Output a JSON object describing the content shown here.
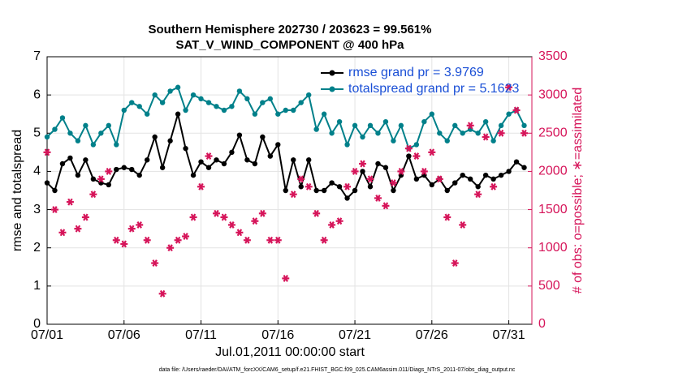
{
  "chart_data": {
    "type": "line",
    "title": "Southern Hemisphere 202730 / 203623 = 99.561%",
    "subtitle": "SAT_V_WIND_COMPONENT @ 400 hPa",
    "ylabel": "rmse and totalspread",
    "y2label": "# of obs: o=possible; ∗=assimilated",
    "xlabel": "Jul.01,2011 00:00:00 start",
    "footnote": "data file: /Users/raeder/DAI/ATM_forcXX/CAM6_setup/f.e21.FHIST_BGC.f09_025.CAM6assim.011/Diags_NTrS_2011-07/obs_diag_output.nc",
    "x": [
      0,
      0.5,
      1,
      1.5,
      2,
      2.5,
      3,
      3.5,
      4,
      4.5,
      5,
      5.5,
      6,
      6.5,
      7,
      7.5,
      8,
      8.5,
      9,
      9.5,
      10,
      10.5,
      11,
      11.5,
      12,
      12.5,
      13,
      13.5,
      14,
      14.5,
      15,
      15.5,
      16,
      16.5,
      17,
      17.5,
      18,
      18.5,
      19,
      19.5,
      20,
      20.5,
      21,
      21.5,
      22,
      22.5,
      23,
      23.5,
      24,
      24.5,
      25,
      25.5,
      26,
      26.5,
      27,
      27.5,
      28,
      28.5,
      29,
      29.5,
      30,
      30.5,
      31
    ],
    "xlim": [
      0,
      31.5
    ],
    "xticks": [
      {
        "value": 0,
        "label": "07/01"
      },
      {
        "value": 5,
        "label": "07/06"
      },
      {
        "value": 10,
        "label": "07/11"
      },
      {
        "value": 15,
        "label": "07/16"
      },
      {
        "value": 20,
        "label": "07/21"
      },
      {
        "value": 25,
        "label": "07/26"
      },
      {
        "value": 30,
        "label": "07/31"
      }
    ],
    "ylim": [
      0,
      7
    ],
    "yticks": [
      0,
      1,
      2,
      3,
      4,
      5,
      6,
      7
    ],
    "y2lim": [
      0,
      3500
    ],
    "y2ticks": [
      0,
      500,
      1000,
      1500,
      2000,
      2500,
      3000,
      3500
    ],
    "grid": true,
    "legend": "northeast",
    "series": [
      {
        "name": "rmse grand pr = 3.9769",
        "color": "#000000",
        "marker": "o",
        "linestyle": "-",
        "values": [
          3.7,
          3.5,
          4.2,
          4.35,
          3.9,
          4.3,
          3.8,
          3.7,
          3.65,
          4.05,
          4.1,
          4.05,
          3.9,
          4.3,
          4.9,
          4.1,
          4.8,
          5.5,
          4.6,
          3.9,
          4.25,
          4.1,
          4.3,
          4.2,
          4.5,
          4.95,
          4.3,
          4.2,
          4.9,
          4.4,
          4.7,
          3.5,
          4.3,
          3.6,
          4.3,
          3.5,
          3.5,
          3.7,
          3.6,
          3.3,
          3.5,
          4.0,
          3.6,
          4.2,
          4.1,
          3.5,
          3.9,
          4.4,
          3.8,
          3.9,
          3.65,
          3.8,
          3.5,
          3.7,
          3.9,
          3.8,
          3.6,
          3.9,
          3.8,
          3.9,
          4.0,
          4.25,
          4.1
        ]
      },
      {
        "name": "totalspread grand pr = 5.1623",
        "color": "#00808a",
        "marker": "o",
        "linestyle": "-",
        "values": [
          4.9,
          5.1,
          5.4,
          5.0,
          4.8,
          5.2,
          4.7,
          5.0,
          5.2,
          4.7,
          5.6,
          5.8,
          5.7,
          5.5,
          6.0,
          5.8,
          6.1,
          6.2,
          5.6,
          6.0,
          5.9,
          5.8,
          5.7,
          5.6,
          5.7,
          6.1,
          5.9,
          5.5,
          5.8,
          5.9,
          5.5,
          5.6,
          5.6,
          5.8,
          6.0,
          5.1,
          5.5,
          5.0,
          5.3,
          4.7,
          5.2,
          4.9,
          5.2,
          5.0,
          5.3,
          4.8,
          5.2,
          4.6,
          4.7,
          5.3,
          5.5,
          5.0,
          4.8,
          5.2,
          5.0,
          5.1,
          5.0,
          5.3,
          4.8,
          5.2,
          5.5,
          5.6,
          5.2
        ]
      },
      {
        "color": "#d6155a",
        "marker": "*",
        "linestyle": "none",
        "axis": "y2",
        "values": [
          2250,
          1500,
          1200,
          1600,
          1250,
          1400,
          1700,
          1900,
          2000,
          1100,
          1050,
          1250,
          1300,
          1100,
          800,
          400,
          1000,
          1100,
          1150,
          1400,
          1800,
          2200,
          1450,
          1400,
          1300,
          1200,
          1100,
          1350,
          1450,
          1100,
          1100,
          600,
          1700,
          1900,
          1800,
          1450,
          1100,
          1300,
          1350,
          1800,
          2000,
          2100,
          1900,
          1650,
          1550,
          1850,
          2000,
          2300,
          2200,
          2000,
          2250,
          1900,
          1400,
          800,
          1300,
          2600,
          1700,
          2450,
          1800,
          2500,
          3100,
          2800,
          2500
        ]
      }
    ]
  }
}
